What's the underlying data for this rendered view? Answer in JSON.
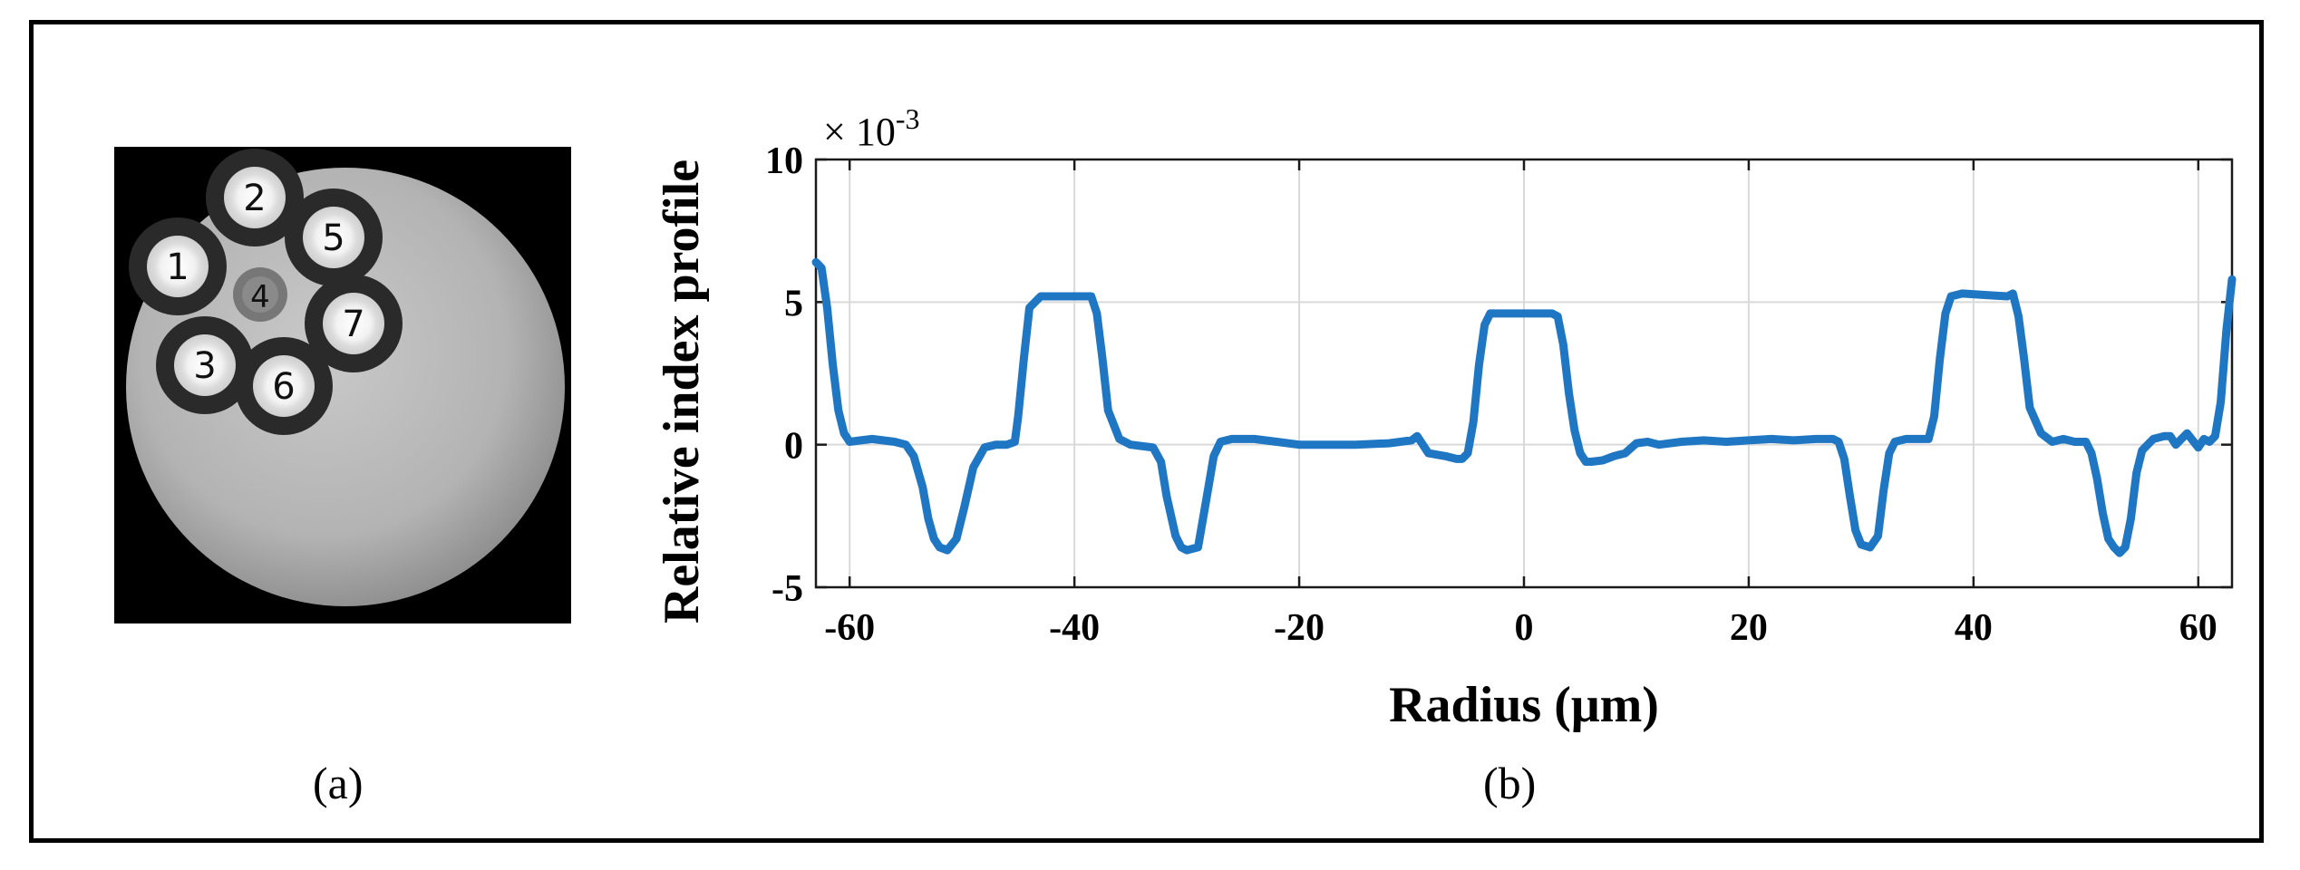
{
  "figure": {
    "panel_a_caption": "(a)",
    "panel_b_caption": "(b)"
  },
  "panel_a": {
    "core_labels": [
      "1",
      "2",
      "3",
      "4",
      "5",
      "6",
      "7"
    ]
  },
  "chart_data": {
    "type": "line",
    "xlabel": "Radius (μm)",
    "ylabel": "Relative index profile",
    "y_multiplier_label": "× 10",
    "y_multiplier_exponent": "-3",
    "xlim": [
      -63,
      63
    ],
    "ylim": [
      -5,
      10
    ],
    "x_ticks": [
      -60,
      -40,
      -20,
      0,
      20,
      40,
      60
    ],
    "y_ticks": [
      -5,
      0,
      5,
      10
    ],
    "x_tick_labels": [
      "-60",
      "-40",
      "-20",
      "0",
      "20",
      "40",
      "60"
    ],
    "y_tick_labels": [
      "-5",
      "0",
      "5",
      "10"
    ],
    "grid": true,
    "line_color": "#1f77c4",
    "series": [
      {
        "x": [
          -63,
          -62.5,
          -62,
          -61.5,
          -61,
          -60.5,
          -60,
          -59,
          -58,
          -56,
          -55,
          -54.3,
          -53.5,
          -53,
          -52.5,
          -52,
          -51.3,
          -50.5,
          -49.8,
          -49,
          -48,
          -47,
          -46,
          -45.3,
          -45,
          -44.5,
          -44,
          -43,
          -41,
          -39,
          -38.5,
          -38,
          -37.5,
          -37,
          -36,
          -35,
          -33,
          -32.3,
          -31.8,
          -31,
          -30.5,
          -30,
          -29,
          -28.3,
          -27.6,
          -27,
          -26,
          -24,
          -22,
          -20,
          -18,
          -15,
          -12,
          -10,
          -9.5,
          -9,
          -8.5,
          -7,
          -6,
          -5.5,
          -5,
          -4.5,
          -4,
          -3.5,
          -3,
          -2,
          0,
          1.5,
          2.5,
          3,
          3.5,
          4,
          4.5,
          5,
          5.5,
          6,
          7,
          8,
          9,
          10,
          11,
          12,
          14,
          16,
          18,
          20,
          22,
          24,
          26,
          27.5,
          28,
          28.5,
          29,
          29.5,
          30,
          30.8,
          31.5,
          32,
          32.5,
          33,
          34,
          35,
          36,
          36.5,
          37,
          37.5,
          38,
          39,
          41,
          43,
          43.5,
          44,
          44.5,
          45,
          46,
          47,
          48,
          49,
          50,
          50.5,
          51,
          51.5,
          52,
          52.5,
          53,
          53.5,
          54,
          54.5,
          55,
          56,
          57,
          57.5,
          58,
          58.5,
          59,
          60,
          60.5,
          61,
          61.5,
          62,
          62.5,
          63
        ],
        "y": [
          6.4,
          6.2,
          4.8,
          2.8,
          1.2,
          0.4,
          0.1,
          0.15,
          0.2,
          0.1,
          0,
          -0.4,
          -1.5,
          -2.6,
          -3.3,
          -3.6,
          -3.7,
          -3.3,
          -2.2,
          -0.8,
          -0.1,
          0,
          0,
          0.1,
          1.0,
          3.0,
          4.8,
          5.2,
          5.2,
          5.2,
          5.2,
          4.6,
          3.0,
          1.2,
          0.2,
          0,
          -0.1,
          -0.6,
          -1.8,
          -3.2,
          -3.6,
          -3.7,
          -3.6,
          -2.0,
          -0.4,
          0.1,
          0.2,
          0.2,
          0.1,
          0,
          0,
          0,
          0.05,
          0.15,
          0.3,
          0,
          -0.3,
          -0.4,
          -0.5,
          -0.5,
          -0.3,
          0.8,
          2.8,
          4.2,
          4.6,
          4.6,
          4.6,
          4.6,
          4.6,
          4.5,
          3.5,
          1.8,
          0.5,
          -0.3,
          -0.6,
          -0.6,
          -0.55,
          -0.4,
          -0.3,
          0.05,
          0.1,
          0,
          0.1,
          0.15,
          0.1,
          0.15,
          0.2,
          0.15,
          0.2,
          0.2,
          0.1,
          -0.5,
          -1.8,
          -3.0,
          -3.5,
          -3.6,
          -3.2,
          -1.6,
          -0.3,
          0.1,
          0.2,
          0.2,
          0.2,
          1.0,
          3.0,
          4.6,
          5.2,
          5.3,
          5.25,
          5.2,
          5.3,
          4.5,
          3.0,
          1.3,
          0.4,
          0.1,
          0.2,
          0.1,
          0.1,
          -0.3,
          -1.2,
          -2.4,
          -3.3,
          -3.6,
          -3.8,
          -3.6,
          -2.6,
          -1.0,
          -0.2,
          0.2,
          0.3,
          0.3,
          0,
          0.2,
          0.4,
          -0.1,
          0.2,
          0.1,
          0.3,
          1.5,
          4.0,
          5.8
        ]
      }
    ]
  }
}
